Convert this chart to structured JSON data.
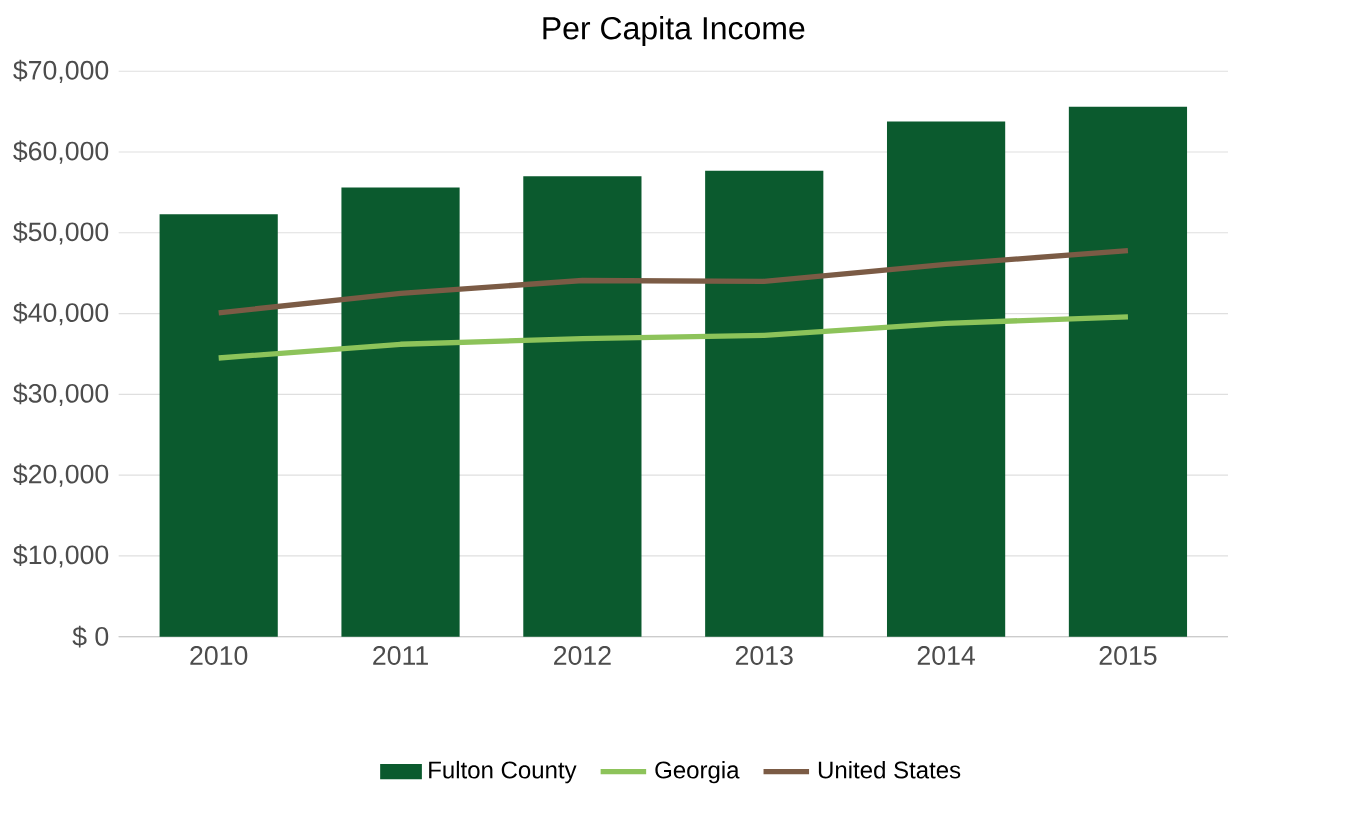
{
  "chart_data": {
    "type": "bar",
    "title": "Per Capita Income",
    "categories": [
      "2010",
      "2011",
      "2012",
      "2013",
      "2014",
      "2015"
    ],
    "series": [
      {
        "name": "Fulton County",
        "color": "#0b5a2e",
        "values": [
          52300,
          55600,
          57000,
          57700,
          63800,
          65600
        ]
      },
      {
        "name": "Georgia",
        "type": "line",
        "color": "#8dc35a",
        "values": [
          34500,
          36200,
          36900,
          37300,
          38800,
          39600
        ]
      },
      {
        "name": "United States",
        "type": "line",
        "color": "#7b5b45",
        "values": [
          40100,
          42500,
          44100,
          44000,
          46100,
          47800
        ]
      }
    ],
    "ylim": [
      0,
      70000
    ],
    "yticks": [
      {
        "value": 0,
        "label": "$ 0"
      },
      {
        "value": 10000,
        "label": "$10,000"
      },
      {
        "value": 20000,
        "label": "$20,000"
      },
      {
        "value": 30000,
        "label": "$30,000"
      },
      {
        "value": 40000,
        "label": "$40,000"
      },
      {
        "value": 50000,
        "label": "$50,000"
      },
      {
        "value": 60000,
        "label": "$60,000"
      },
      {
        "value": 70000,
        "label": "$70,000"
      }
    ],
    "grid": "y",
    "legend": "bottom",
    "line_style": "solid",
    "marker": "none"
  }
}
